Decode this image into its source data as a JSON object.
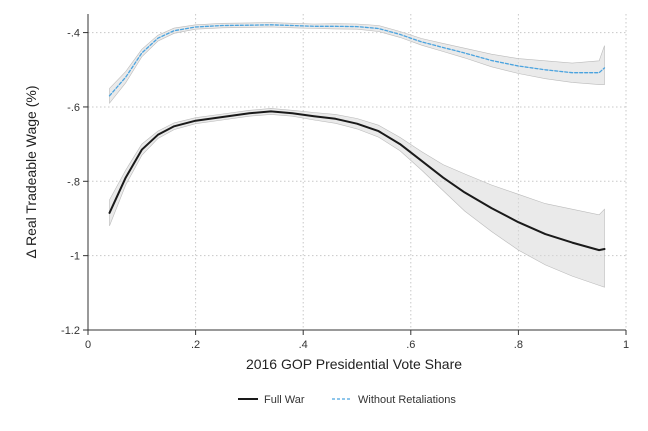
{
  "chart_data": {
    "type": "line",
    "title": "",
    "xlabel": "2016 GOP Presidential Vote Share",
    "ylabel": "Δ Real Tradeable Wage (%)",
    "xlim": [
      0,
      1
    ],
    "ylim": [
      -1.2,
      -0.35
    ],
    "x_ticks": [
      "0",
      ".2",
      ".4",
      ".6",
      ".8",
      "1"
    ],
    "x_tick_values": [
      0,
      0.2,
      0.4,
      0.6,
      0.8,
      1
    ],
    "y_ticks": [
      "-.4",
      "-.6",
      "-.8",
      "-1",
      "-1.2"
    ],
    "y_tick_values": [
      -0.4,
      -0.6,
      -0.8,
      -1.0,
      -1.2
    ],
    "grid": true,
    "legend_position": "bottom",
    "colors": {
      "full_war": "#1a1a1a",
      "without_retaliations": "#4aa3df",
      "band": "#d9d9d9",
      "band_edge": "#bbbbbb",
      "grid": "#c8c8c8"
    },
    "series": [
      {
        "name": "Full War",
        "style": "solid",
        "x": [
          0.04,
          0.07,
          0.1,
          0.13,
          0.16,
          0.2,
          0.25,
          0.3,
          0.34,
          0.38,
          0.42,
          0.46,
          0.5,
          0.54,
          0.58,
          0.62,
          0.66,
          0.7,
          0.75,
          0.8,
          0.85,
          0.9,
          0.95,
          0.96
        ],
        "y": [
          -0.885,
          -0.79,
          -0.715,
          -0.675,
          -0.652,
          -0.637,
          -0.627,
          -0.617,
          -0.612,
          -0.617,
          -0.625,
          -0.632,
          -0.645,
          -0.665,
          -0.7,
          -0.745,
          -0.79,
          -0.83,
          -0.872,
          -0.91,
          -0.942,
          -0.965,
          -0.985,
          -0.982
        ],
        "lower": [
          -0.92,
          -0.81,
          -0.73,
          -0.685,
          -0.661,
          -0.645,
          -0.635,
          -0.625,
          -0.62,
          -0.625,
          -0.635,
          -0.644,
          -0.659,
          -0.681,
          -0.718,
          -0.77,
          -0.825,
          -0.88,
          -0.935,
          -0.985,
          -1.025,
          -1.055,
          -1.08,
          -1.085
        ],
        "upper": [
          -0.85,
          -0.77,
          -0.7,
          -0.665,
          -0.643,
          -0.629,
          -0.619,
          -0.609,
          -0.604,
          -0.609,
          -0.615,
          -0.62,
          -0.631,
          -0.649,
          -0.682,
          -0.72,
          -0.755,
          -0.78,
          -0.81,
          -0.835,
          -0.86,
          -0.875,
          -0.89,
          -0.875
        ]
      },
      {
        "name": "Without Retaliations",
        "style": "dashed",
        "x": [
          0.04,
          0.07,
          0.1,
          0.13,
          0.16,
          0.2,
          0.25,
          0.3,
          0.34,
          0.38,
          0.42,
          0.46,
          0.5,
          0.54,
          0.58,
          0.62,
          0.66,
          0.7,
          0.75,
          0.8,
          0.85,
          0.9,
          0.95,
          0.96
        ],
        "y": [
          -0.57,
          -0.52,
          -0.455,
          -0.415,
          -0.395,
          -0.385,
          -0.381,
          -0.38,
          -0.379,
          -0.381,
          -0.383,
          -0.383,
          -0.384,
          -0.389,
          -0.405,
          -0.425,
          -0.44,
          -0.455,
          -0.475,
          -0.49,
          -0.5,
          -0.508,
          -0.508,
          -0.495
        ],
        "lower": [
          -0.59,
          -0.535,
          -0.465,
          -0.423,
          -0.402,
          -0.391,
          -0.387,
          -0.386,
          -0.385,
          -0.387,
          -0.389,
          -0.39,
          -0.391,
          -0.397,
          -0.413,
          -0.434,
          -0.451,
          -0.468,
          -0.492,
          -0.51,
          -0.524,
          -0.534,
          -0.54,
          -0.54
        ],
        "upper": [
          -0.55,
          -0.505,
          -0.445,
          -0.407,
          -0.388,
          -0.379,
          -0.375,
          -0.374,
          -0.373,
          -0.375,
          -0.377,
          -0.376,
          -0.377,
          -0.381,
          -0.397,
          -0.416,
          -0.429,
          -0.442,
          -0.458,
          -0.47,
          -0.476,
          -0.482,
          -0.476,
          -0.435
        ]
      }
    ]
  }
}
